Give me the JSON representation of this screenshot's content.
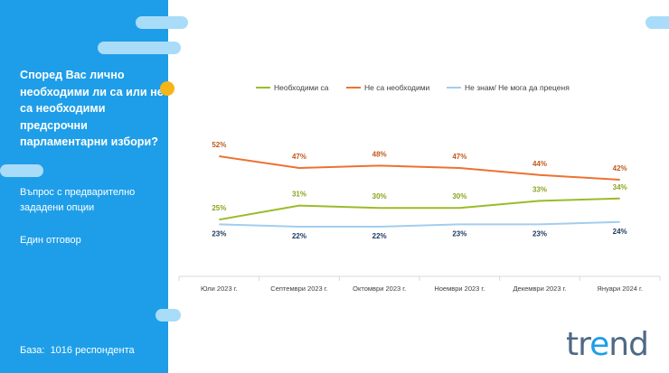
{
  "sidebar": {
    "question": "Според Вас лично необходими ли са или не са необходими предсрочни парламентарни избори?",
    "note": "Въпрос с предварително зададени опции",
    "answer_type": "Един отговор",
    "base_label": "База:",
    "base_value": "1016 респондента"
  },
  "logo": {
    "left": "tr",
    "accent": "e",
    "right": "nd"
  },
  "colors": {
    "sidebar": "#1e9ee8",
    "accent_pill": "#a9dcf8",
    "accent_dot": "#f5b417"
  },
  "chart_data": {
    "type": "line",
    "categories": [
      "Юли 2023 г.",
      "Септември 2023 г.",
      "Октомври 2023 г.",
      "Ноември 2023 г.",
      "Декември 2023 г.",
      "Януари 2024 г."
    ],
    "series": [
      {
        "name": "Необходими са",
        "values": [
          25,
          31,
          30,
          30,
          33,
          34
        ],
        "color": "#9bbb2a",
        "label_color": "#8aa41f"
      },
      {
        "name": "Не са необходими",
        "values": [
          52,
          47,
          48,
          47,
          44,
          42
        ],
        "color": "#ed7230",
        "label_color": "#c05a1c"
      },
      {
        "name": "Не знам/ Не мога да преценя",
        "values": [
          23,
          22,
          22,
          23,
          23,
          24
        ],
        "color": "#a3cdee",
        "label_color": "#1f3b60"
      }
    ],
    "value_suffix": "%",
    "legend_position": "top",
    "grid": false
  }
}
